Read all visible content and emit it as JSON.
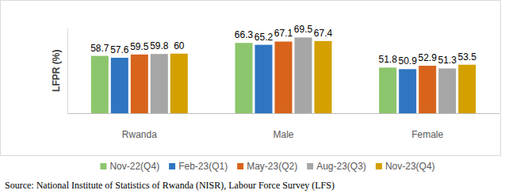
{
  "chart_data": {
    "type": "bar",
    "y_label": "LFPR (%)",
    "source": "Source: National Institute of Statistics of Rwanda (NISR), Labour Force Survey (LFS)",
    "categories": [
      "Rwanda",
      "Male",
      "Female"
    ],
    "series": [
      {
        "name": "Nov-22(Q4)",
        "color": "#8cc66c",
        "values": [
          58.7,
          66.3,
          51.8
        ]
      },
      {
        "name": "Feb-23(Q1)",
        "color": "#2f75c0",
        "values": [
          57.6,
          65.2,
          50.9
        ]
      },
      {
        "name": "May-23(Q2)",
        "color": "#d8641c",
        "values": [
          59.5,
          67.1,
          52.9
        ]
      },
      {
        "name": "Aug-23(Q3)",
        "color": "#a6a6a6",
        "values": [
          59.8,
          69.5,
          51.3
        ]
      },
      {
        "name": "Nov-23(Q4)",
        "color": "#d4a000",
        "values": [
          60.0,
          67.4,
          53.5
        ]
      }
    ],
    "ylim": [
      25,
      75
    ],
    "tick_labels": "x",
    "data_labels": true,
    "legend": "bottom",
    "grid": false
  }
}
